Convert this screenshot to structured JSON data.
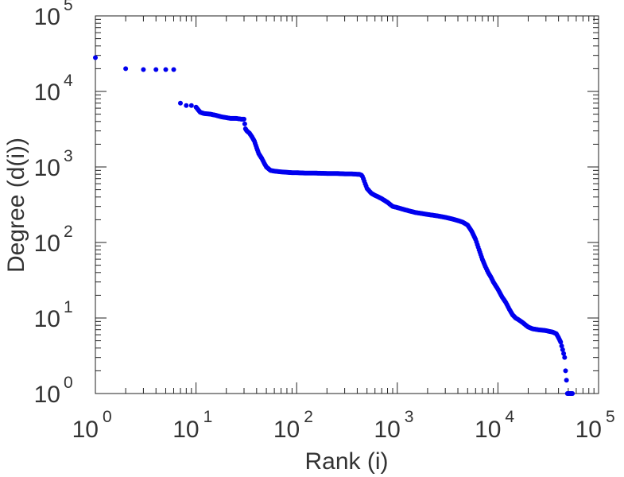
{
  "chart_data": {
    "type": "scatter",
    "xlabel": "Rank (i)",
    "ylabel": "Degree (d(i))",
    "x_scale": "log",
    "y_scale": "log",
    "xlim": [
      1,
      100000
    ],
    "ylim": [
      1,
      100000
    ],
    "grid": false,
    "point_color": "#0000ee",
    "x_ticks": [
      {
        "base": "10",
        "exp": "0"
      },
      {
        "base": "10",
        "exp": "1"
      },
      {
        "base": "10",
        "exp": "2"
      },
      {
        "base": "10",
        "exp": "3"
      },
      {
        "base": "10",
        "exp": "4"
      },
      {
        "base": "10",
        "exp": "5"
      }
    ],
    "y_ticks": [
      {
        "base": "10",
        "exp": "0"
      },
      {
        "base": "10",
        "exp": "1"
      },
      {
        "base": "10",
        "exp": "2"
      },
      {
        "base": "10",
        "exp": "3"
      },
      {
        "base": "10",
        "exp": "4"
      },
      {
        "base": "10",
        "exp": "5"
      }
    ],
    "points": {
      "x": [
        1,
        2,
        3,
        4,
        5,
        6,
        7,
        8,
        9,
        10,
        11,
        12,
        14,
        16,
        18,
        20,
        22,
        25,
        28,
        30,
        31,
        32,
        34,
        36,
        38,
        40,
        42,
        45,
        48,
        50,
        55,
        60,
        65,
        70,
        80,
        90,
        100,
        120,
        150,
        200,
        250,
        300,
        350,
        400,
        420,
        440,
        450,
        460,
        480,
        500,
        550,
        600,
        650,
        700,
        800,
        900,
        1000,
        1200,
        1500,
        2000,
        2500,
        3000,
        3500,
        4000,
        4500,
        5000,
        5500,
        6000,
        6500,
        7000,
        7500,
        8000,
        8500,
        9000,
        10000,
        11000,
        12000,
        13000,
        14000,
        15000,
        16000,
        17000,
        18000,
        19000,
        20000,
        22000,
        25000,
        30000,
        35000,
        38000,
        40000,
        42000,
        44000,
        46000,
        47000,
        48000,
        49000,
        50000,
        52000,
        55000
      ],
      "y": [
        28000,
        20000,
        19500,
        19500,
        19500,
        19500,
        7000,
        6500,
        6500,
        6200,
        5300,
        5100,
        5000,
        4800,
        4600,
        4500,
        4400,
        4400,
        4300,
        4300,
        3200,
        3000,
        2800,
        2500,
        2200,
        1800,
        1500,
        1300,
        1100,
        1000,
        900,
        880,
        870,
        860,
        850,
        840,
        840,
        830,
        830,
        820,
        820,
        810,
        810,
        800,
        800,
        780,
        750,
        700,
        600,
        520,
        450,
        420,
        400,
        380,
        340,
        300,
        290,
        270,
        250,
        235,
        225,
        215,
        205,
        195,
        185,
        170,
        140,
        110,
        80,
        60,
        48,
        40,
        35,
        30,
        24,
        19,
        16,
        13,
        11,
        10,
        9.5,
        9,
        8.5,
        8,
        7.6,
        7.2,
        7,
        6.8,
        6.5,
        6.2,
        5.5,
        4.8,
        3.8,
        3,
        2,
        1.5,
        1,
        1,
        1,
        1
      ]
    }
  }
}
